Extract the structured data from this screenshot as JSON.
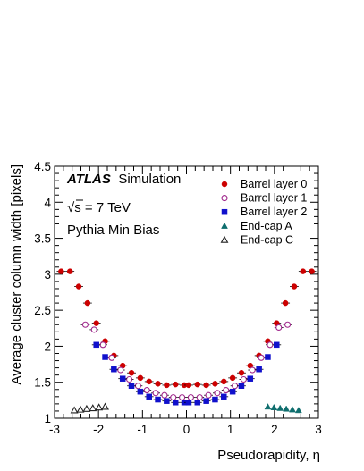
{
  "chart_data": {
    "type": "scatter",
    "xlabel": "Pseudorapidity, η",
    "ylabel": "Average cluster column width [pixels]",
    "xlim": [
      -3,
      3
    ],
    "ylim": [
      1,
      4.5
    ],
    "x_ticks": [
      "-3",
      "-2",
      "-1",
      "0",
      "1",
      "2",
      "3"
    ],
    "y_ticks": [
      "1",
      "1.5",
      "2",
      "2.5",
      "3",
      "3.5",
      "4",
      "4.5"
    ],
    "legend_position": "top-right",
    "annotations": {
      "brand": "ATLAS",
      "brand_suffix": "Simulation",
      "energy_prefix": "√s = 7 TeV",
      "sample": "Pythia Min Bias"
    },
    "series": [
      {
        "name": "Barrel layer 0",
        "marker": "filled-circle",
        "color": "#cc0000",
        "x": [
          -2.85,
          -2.65,
          -2.45,
          -2.25,
          -2.05,
          -1.85,
          -1.65,
          -1.45,
          -1.25,
          -1.05,
          -0.85,
          -0.65,
          -0.45,
          -0.25,
          -0.05,
          0.05,
          0.25,
          0.45,
          0.65,
          0.85,
          1.05,
          1.25,
          1.45,
          1.65,
          1.85,
          2.05,
          2.25,
          2.45,
          2.65,
          2.85
        ],
        "y": [
          3.04,
          3.04,
          2.83,
          2.6,
          2.32,
          2.07,
          1.87,
          1.73,
          1.63,
          1.56,
          1.51,
          1.48,
          1.46,
          1.47,
          1.46,
          1.46,
          1.47,
          1.46,
          1.48,
          1.51,
          1.56,
          1.63,
          1.73,
          1.87,
          2.07,
          2.32,
          2.6,
          2.83,
          3.04,
          3.04
        ]
      },
      {
        "name": "Barrel layer 1",
        "marker": "open-circle",
        "color": "#a0288c",
        "x": [
          -2.3,
          -2.1,
          -1.9,
          -1.7,
          -1.5,
          -1.3,
          -1.1,
          -0.9,
          -0.7,
          -0.5,
          -0.3,
          -0.1,
          0.1,
          0.3,
          0.5,
          0.7,
          0.9,
          1.1,
          1.3,
          1.5,
          1.7,
          1.9,
          2.1,
          2.3
        ],
        "y": [
          2.3,
          2.23,
          2.02,
          1.84,
          1.67,
          1.54,
          1.45,
          1.39,
          1.35,
          1.32,
          1.29,
          1.29,
          1.29,
          1.29,
          1.32,
          1.35,
          1.39,
          1.45,
          1.54,
          1.67,
          1.84,
          2.02,
          2.26,
          2.3
        ]
      },
      {
        "name": "Barrel layer 2",
        "marker": "filled-square",
        "color": "#1010cc",
        "x": [
          -2.05,
          -1.85,
          -1.65,
          -1.45,
          -1.25,
          -1.05,
          -0.85,
          -0.65,
          -0.45,
          -0.25,
          -0.05,
          0.05,
          0.25,
          0.45,
          0.65,
          0.85,
          1.05,
          1.25,
          1.45,
          1.65,
          1.85,
          2.05
        ],
        "y": [
          2.02,
          1.85,
          1.68,
          1.55,
          1.45,
          1.37,
          1.3,
          1.26,
          1.24,
          1.22,
          1.22,
          1.22,
          1.22,
          1.24,
          1.26,
          1.3,
          1.37,
          1.45,
          1.55,
          1.68,
          1.85,
          2.02
        ]
      },
      {
        "name": "End-cap A",
        "marker": "filled-triangle",
        "color": "#0f6e6e",
        "x": [
          1.85,
          1.99,
          2.13,
          2.27,
          2.41,
          2.55
        ],
        "y": [
          1.16,
          1.15,
          1.14,
          1.13,
          1.12,
          1.11
        ]
      },
      {
        "name": "End-cap C",
        "marker": "open-triangle",
        "color": "#222222",
        "x": [
          -2.55,
          -2.41,
          -2.27,
          -2.13,
          -1.99,
          -1.85
        ],
        "y": [
          1.11,
          1.12,
          1.13,
          1.14,
          1.15,
          1.16
        ]
      }
    ]
  }
}
